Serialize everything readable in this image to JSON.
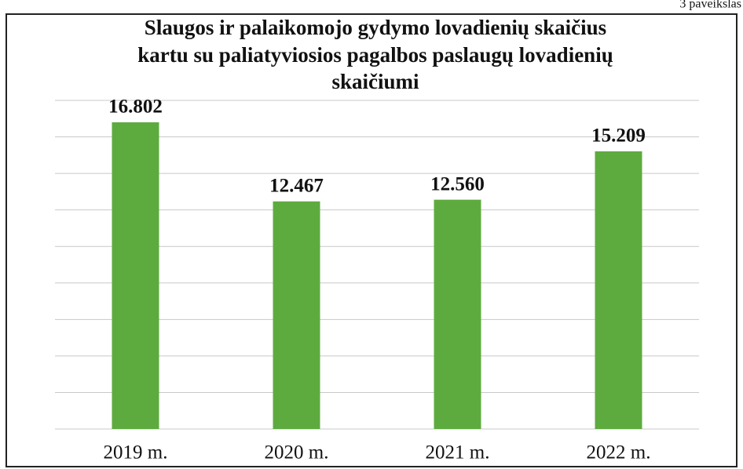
{
  "chart_data": {
    "type": "bar",
    "corner_note": "3 paveikslas",
    "title": [
      "Slaugos ir palaikomojo  gydymo lovadienių skaičius",
      "kartu su paliatyviosios pagalbos paslaugų lovadienių",
      "skaičiumi"
    ],
    "categories": [
      "2019 m.",
      "2020 m.",
      "2021 m.",
      "2022 m."
    ],
    "values": [
      16802,
      12467,
      12560,
      15209
    ],
    "value_labels": [
      "16.802",
      "12.467",
      "12.560",
      "15.209"
    ],
    "color": "#5dab3f",
    "ylim": [
      0,
      18000
    ],
    "yticks": [
      0,
      2000,
      4000,
      6000,
      8000,
      10000,
      12000,
      14000,
      16000,
      18000
    ],
    "grid": true
  }
}
